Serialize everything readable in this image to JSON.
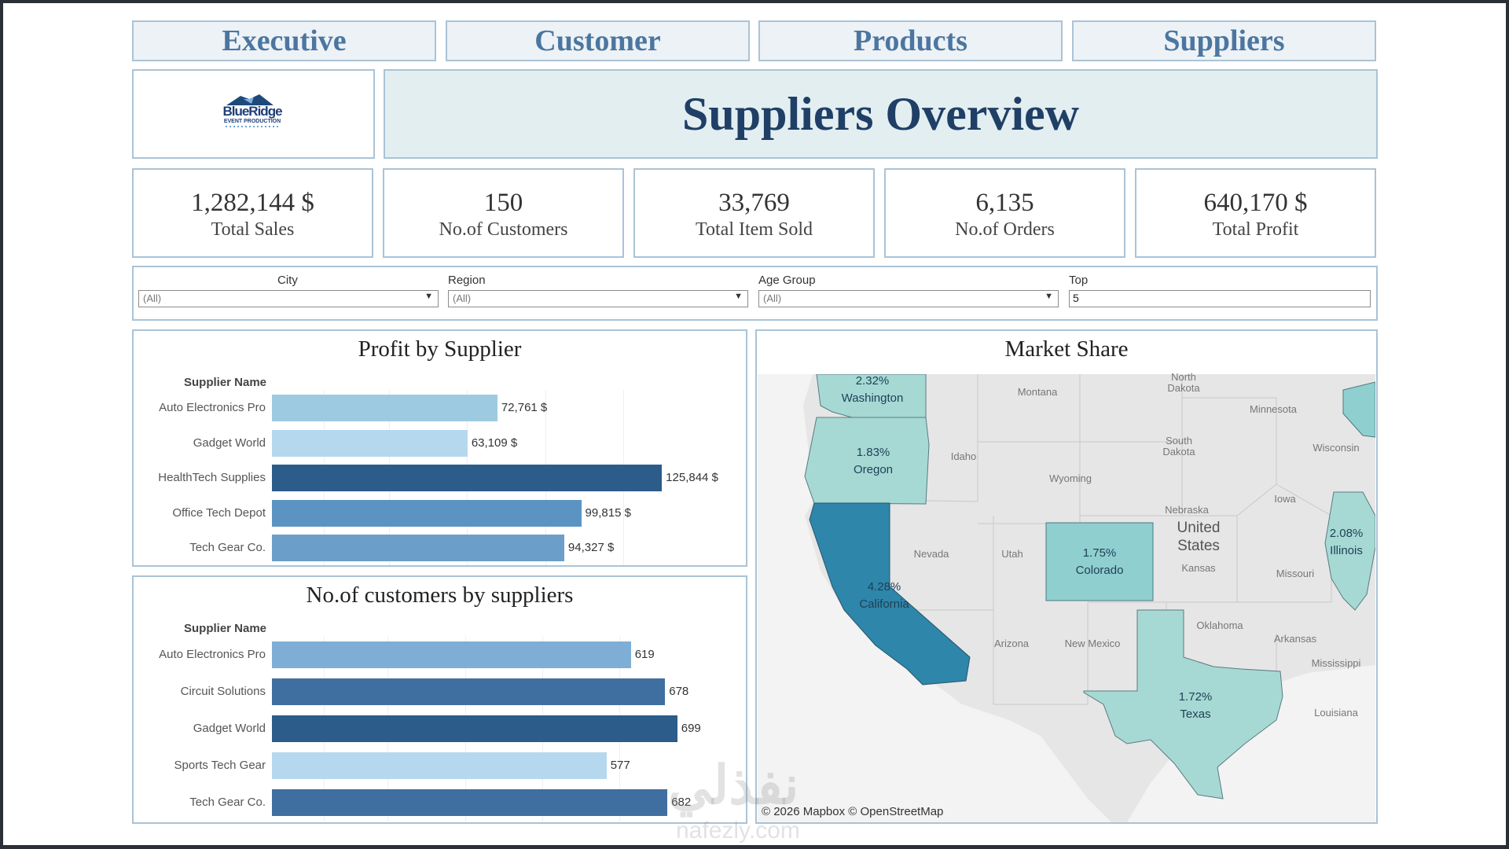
{
  "tabs": [
    "Executive",
    "Customer",
    "Products",
    "Suppliers"
  ],
  "logo": {
    "name": "BlueRidge",
    "tagline": "EVENT PRODUCTION"
  },
  "page_title": "Suppliers Overview",
  "kpis": [
    {
      "value": "1,282,144 $",
      "label": "Total Sales"
    },
    {
      "value": "150",
      "label": "No.of Customers"
    },
    {
      "value": "33,769",
      "label": "Total Item Sold"
    },
    {
      "value": "6,135",
      "label": "No.of Orders"
    },
    {
      "value": "640,170 $",
      "label": "Total Profit"
    }
  ],
  "filters": [
    {
      "label": "City",
      "value": "(All)"
    },
    {
      "label": "Region",
      "value": "(All)"
    },
    {
      "label": "Age Group",
      "value": "(All)"
    },
    {
      "label": "Top",
      "value": "5"
    }
  ],
  "profit_chart_title": "Profit by Supplier",
  "customers_chart_title": "No.of customers by suppliers",
  "map": {
    "title": "Market Share",
    "attribution": "© 2026 Mapbox  © OpenStreetMap",
    "states": [
      {
        "name": "Washington",
        "share": "2.32%"
      },
      {
        "name": "Oregon",
        "share": "1.83%"
      },
      {
        "name": "California",
        "share": "4.28%"
      },
      {
        "name": "Colorado",
        "share": "1.75%"
      },
      {
        "name": "Illinois",
        "share": "2.08%"
      },
      {
        "name": "Texas",
        "share": "1.72%"
      }
    ],
    "labels": [
      "Montana",
      "North Dakota",
      "Minnesota",
      "South Dakota",
      "Wisconsin",
      "Idaho",
      "Wyoming",
      "Iowa",
      "Nebraska",
      "United States",
      "Nevada",
      "Utah",
      "Kansas",
      "Missouri",
      "Oklahoma",
      "Arkansas",
      "Mississippi",
      "Arizona",
      "New Mexico",
      "Louisiana"
    ]
  },
  "watermark": {
    "arabic": "نفذلي",
    "latin": "nafezly.com"
  },
  "chart_data": [
    {
      "type": "bar",
      "orientation": "horizontal",
      "title": "Profit by Supplier",
      "ylabel": "Supplier Name",
      "categories": [
        "Auto Electronics Pro",
        "Gadget World",
        "HealthTech Supplies",
        "Office Tech Depot",
        "Tech Gear Co."
      ],
      "values": [
        72761,
        63109,
        125844,
        99815,
        94327
      ],
      "value_labels": [
        "72,761 $",
        "63,109 $",
        "125,844 $",
        "99,815 $",
        "94,327 $"
      ],
      "colors": [
        "#9ecae1",
        "#b5d8ee",
        "#2b5c8a",
        "#5b94c2",
        "#6b9fc9"
      ],
      "xlim": [
        0,
        140000
      ]
    },
    {
      "type": "bar",
      "orientation": "horizontal",
      "title": "No.of customers by suppliers",
      "ylabel": "Supplier Name",
      "categories": [
        "Auto Electronics Pro",
        "Circuit Solutions",
        "Gadget World",
        "Sports Tech Gear",
        "Tech Gear Co."
      ],
      "values": [
        619,
        678,
        699,
        577,
        682
      ],
      "value_labels": [
        "619",
        "678",
        "699",
        "577",
        "682"
      ],
      "colors": [
        "#7eaed6",
        "#3f6fa0",
        "#2b5c8a",
        "#b5d8ee",
        "#3f6fa0"
      ],
      "xlim": [
        0,
        740
      ]
    }
  ]
}
